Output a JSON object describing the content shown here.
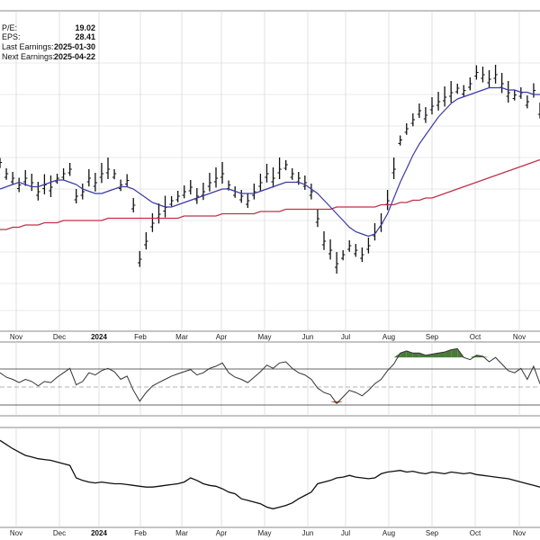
{
  "info": {
    "pe_label": "P/E:",
    "pe_value": "19.02",
    "eps_label": "EPS:",
    "eps_value": "28.41",
    "last_label": "Last Earnings:",
    "last_value": "2025-01-30",
    "next_label": "Next Earnings:",
    "next_value": "2025-04-22"
  },
  "colors": {
    "price_bars": "#111111",
    "ma_short": "#3a3aa8",
    "ma_long": "#c0304a",
    "grid": "#d4d4d4",
    "rsi_line": "#333333",
    "rsi_overbought_fill": "#4a7a3a",
    "rsi_oversold_fill": "#b0503a",
    "rs_line": "#111111"
  },
  "chart_data": {
    "type": "line",
    "x_tick_labels": [
      "Nov",
      "Dec",
      "2024",
      "Feb",
      "Mar",
      "Apr",
      "May",
      "Jun",
      "Jul",
      "Aug",
      "Sep",
      "Oct",
      "Nov"
    ],
    "x_tick_bold": [
      false,
      false,
      true,
      false,
      false,
      false,
      false,
      false,
      false,
      false,
      false,
      false,
      false
    ],
    "price_panel": {
      "series": [
        {
          "values": [
            65,
            60,
            58,
            55,
            58,
            56,
            52,
            55,
            54,
            58,
            60,
            62,
            50,
            52,
            58,
            56,
            60,
            62,
            60,
            55,
            57,
            46,
            22,
            30,
            38,
            42,
            45,
            48,
            50,
            52,
            54,
            50,
            52,
            56,
            58,
            60,
            55,
            52,
            50,
            48,
            52,
            56,
            60,
            58,
            62,
            64,
            60,
            58,
            56,
            52,
            40,
            30,
            26,
            20,
            24,
            28,
            26,
            24,
            28,
            34,
            38,
            48,
            62,
            75,
            80,
            84,
            88,
            86,
            90,
            92,
            94,
            96,
            98,
            97,
            100,
            105,
            104,
            102,
            104,
            100,
            96,
            95,
            96,
            92,
            97,
            88
          ]
        },
        {
          "values": [
            54,
            55,
            56,
            57,
            56,
            55,
            55,
            56,
            57,
            58,
            58,
            57,
            56,
            54,
            53,
            52,
            52,
            53,
            54,
            55,
            55,
            54,
            52,
            50,
            48,
            47,
            46,
            46,
            47,
            48,
            49,
            50,
            51,
            52,
            53,
            54,
            54,
            53,
            52,
            52,
            52,
            53,
            54,
            55,
            56,
            57,
            57,
            57,
            56,
            54,
            52,
            49,
            46,
            43,
            40,
            37,
            35,
            34,
            33,
            34,
            38,
            43,
            50,
            57,
            63,
            69,
            74,
            78,
            82,
            86,
            89,
            92,
            94,
            95,
            96,
            97,
            98,
            99,
            99,
            99,
            98,
            98,
            97,
            97,
            96,
            96
          ]
        },
        {
          "values": [
            36,
            36,
            37,
            37,
            38,
            38,
            38,
            39,
            39,
            39,
            40,
            40,
            40,
            40,
            40,
            40,
            40,
            41,
            41,
            41,
            41,
            41,
            41,
            41,
            41,
            41,
            41,
            41,
            41,
            42,
            42,
            42,
            42,
            42,
            42,
            43,
            43,
            43,
            43,
            43,
            43,
            44,
            44,
            44,
            44,
            45,
            45,
            45,
            45,
            45,
            45,
            45,
            45,
            46,
            46,
            46,
            46,
            46,
            46,
            46,
            47,
            47,
            47,
            48,
            48,
            49,
            49,
            50,
            50,
            51,
            52,
            53,
            54,
            55,
            56,
            57,
            58,
            59,
            60,
            61,
            62,
            63,
            64,
            65,
            66,
            67
          ]
        }
      ]
    },
    "rsi_panel": {
      "upper_level": 70,
      "mid_level": 50,
      "lower_level": 30,
      "series": [
        {
          "values": [
            56,
            52,
            50,
            47,
            50,
            48,
            44,
            48,
            47,
            52,
            56,
            60,
            45,
            48,
            56,
            54,
            58,
            60,
            57,
            50,
            53,
            40,
            30,
            38,
            44,
            47,
            50,
            53,
            55,
            57,
            59,
            54,
            56,
            60,
            62,
            65,
            56,
            52,
            50,
            47,
            52,
            57,
            63,
            60,
            65,
            66,
            60,
            56,
            54,
            50,
            42,
            38,
            36,
            28,
            34,
            40,
            38,
            35,
            40,
            46,
            50,
            58,
            64,
            74,
            76,
            74,
            74,
            72,
            73,
            74,
            75,
            77,
            78,
            70,
            68,
            72,
            71,
            66,
            70,
            64,
            58,
            56,
            60,
            50,
            62,
            46
          ]
        }
      ]
    },
    "rs_panel": {
      "series": [
        {
          "values": [
            100,
            95,
            90,
            86,
            82,
            80,
            78,
            77,
            76,
            74,
            72,
            70,
            55,
            52,
            50,
            49,
            50,
            49,
            48,
            48,
            47,
            46,
            45,
            44,
            44,
            45,
            46,
            47,
            48,
            50,
            55,
            52,
            48,
            46,
            45,
            42,
            38,
            36,
            30,
            28,
            26,
            24,
            20,
            18,
            20,
            22,
            25,
            30,
            34,
            38,
            48,
            50,
            52,
            55,
            56,
            58,
            56,
            55,
            54,
            55,
            60,
            62,
            63,
            64,
            62,
            63,
            61,
            60,
            62,
            61,
            60,
            62,
            61,
            60,
            61,
            59,
            58,
            57,
            56,
            55,
            54,
            52,
            50,
            48,
            46,
            44
          ]
        }
      ]
    }
  }
}
